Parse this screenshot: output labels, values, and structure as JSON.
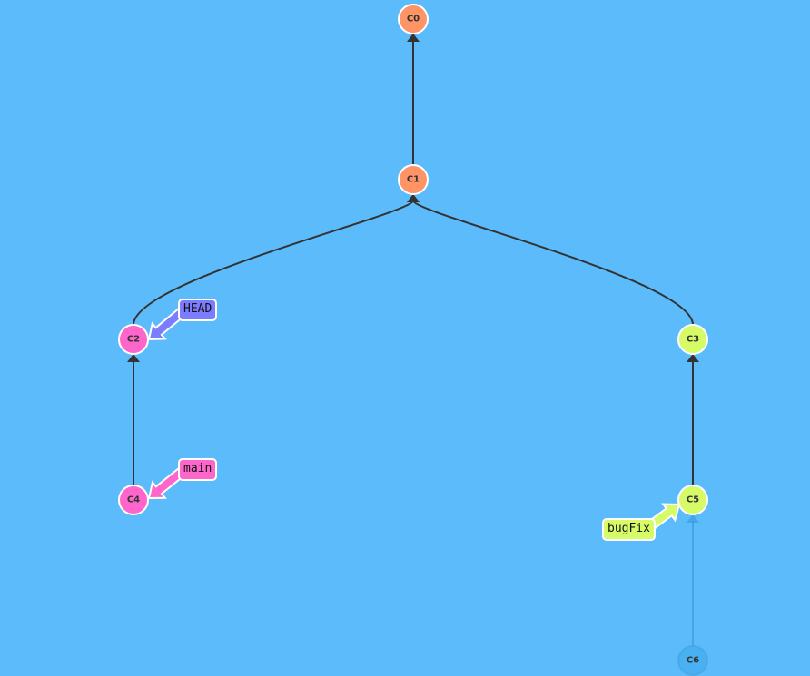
{
  "commits": [
    {
      "id": "C0",
      "color": "#ff9466",
      "faded": false
    },
    {
      "id": "C1",
      "color": "#ff9466",
      "faded": false
    },
    {
      "id": "C2",
      "color": "#ff66cc",
      "faded": false
    },
    {
      "id": "C3",
      "color": "#d6fb66",
      "faded": false
    },
    {
      "id": "C4",
      "color": "#ff66cc",
      "faded": false
    },
    {
      "id": "C5",
      "color": "#d6fb66",
      "faded": false
    },
    {
      "id": "C6",
      "color": "#5cbbfa",
      "faded": true
    }
  ],
  "edges": [
    {
      "child": "C1",
      "parent": "C0"
    },
    {
      "child": "C2",
      "parent": "C1"
    },
    {
      "child": "C3",
      "parent": "C1"
    },
    {
      "child": "C4",
      "parent": "C2"
    },
    {
      "child": "C5",
      "parent": "C3"
    },
    {
      "child": "C6",
      "parent": "C5",
      "faded": true
    }
  ],
  "refs": {
    "head": {
      "label": "HEAD",
      "target": "C2",
      "color": "#7c7cff"
    },
    "main": {
      "label": "main",
      "target": "C4",
      "color": "#ff66cc"
    },
    "bugfix": {
      "label": "bugFix",
      "target": "C5",
      "color": "#d6fb66"
    }
  }
}
